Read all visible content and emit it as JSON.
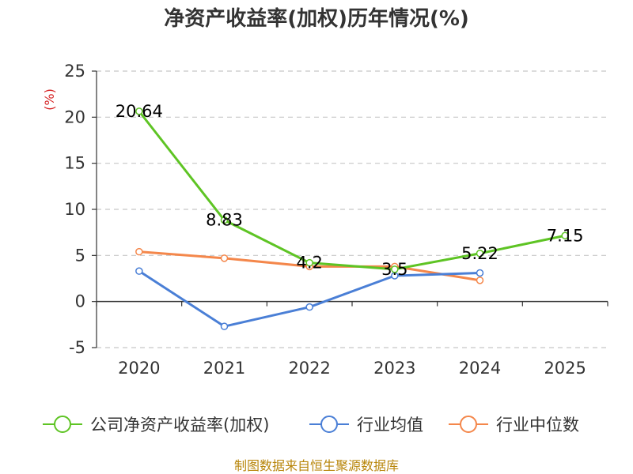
{
  "chart_data": {
    "type": "line",
    "title": "净资产收益率(加权)历年情况(%)",
    "ylabel": "(%)",
    "xlabel": "",
    "ylim": [
      -5,
      25
    ],
    "yticks": [
      -5,
      0,
      5,
      10,
      15,
      20,
      25
    ],
    "categories": [
      "2020",
      "2021",
      "2022",
      "2023",
      "2024",
      "2025"
    ],
    "grid": true,
    "legend_position": "bottom",
    "series": [
      {
        "name": "公司净资产收益率(加权)",
        "color": "#5ec424",
        "values": [
          20.64,
          8.83,
          4.2,
          3.5,
          5.22,
          7.15
        ],
        "labels": [
          "20.64",
          "8.83",
          "4.2",
          "3.5",
          "5.22",
          "7.15"
        ]
      },
      {
        "name": "行业均值",
        "color": "#4a7fd6",
        "values": [
          3.3,
          -2.7,
          -0.6,
          2.8,
          3.1,
          null
        ]
      },
      {
        "name": "行业中位数",
        "color": "#f4874b",
        "values": [
          5.4,
          4.7,
          3.8,
          3.8,
          2.3,
          null
        ]
      }
    ],
    "source": "制图数据来自恒生聚源数据库"
  }
}
